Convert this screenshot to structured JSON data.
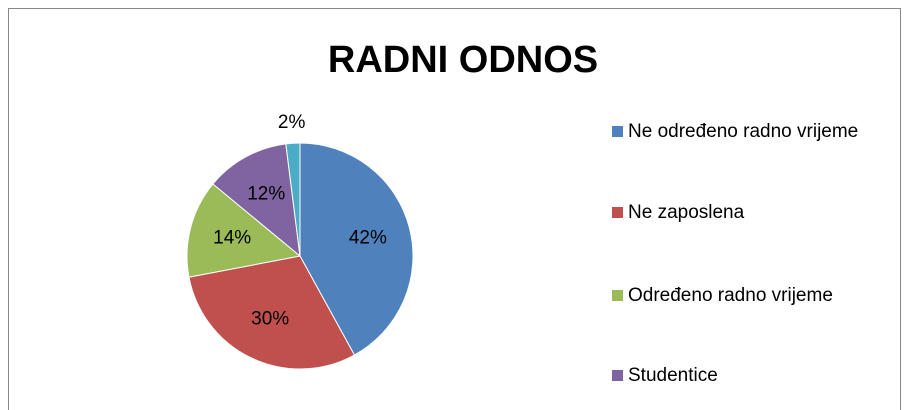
{
  "chart_data": {
    "type": "pie",
    "title": "RADNI ODNOS",
    "categories": [
      "Ne određeno radno vrijeme",
      "Ne zaposlena",
      "Određeno radno vrijeme",
      "Studentice",
      null
    ],
    "values": [
      42,
      30,
      14,
      12,
      2
    ],
    "value_labels": [
      "42%",
      "30%",
      "14%",
      "12%",
      "2%"
    ],
    "colors": [
      "#4f81bd",
      "#c0504d",
      "#9bbb59",
      "#8064a2",
      "#4bacc6"
    ],
    "legend": "right"
  }
}
